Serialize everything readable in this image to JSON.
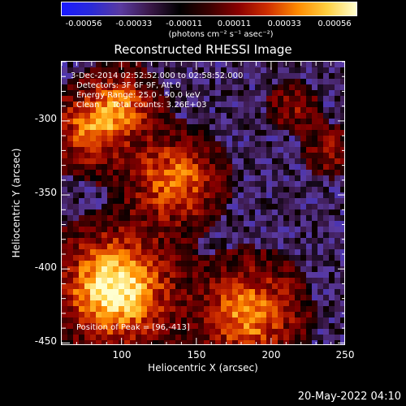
{
  "colorbar": {
    "ticks": [
      "-0.00056",
      "-0.00033",
      "-0.00011",
      "0.00011",
      "0.00033",
      "0.00056"
    ],
    "units": "(photons cm⁻² s⁻¹ asec⁻²)",
    "gradient": [
      "#1a1aff",
      "#2a2ad8",
      "#5a3aa0",
      "#3a1848",
      "#000000",
      "#3a0000",
      "#8a0000",
      "#d03000",
      "#ff8a00",
      "#ffd040",
      "#ffffd0"
    ]
  },
  "title": "Reconstructed RHESSI Image",
  "annotations": {
    "line1": "3-Dec-2014 02:52:52.000 to 02:58:52.000",
    "line2": "Detectors: 3F 6F 9F, Att 0",
    "line3": "Energy Range: 25.0 - 50.0 keV",
    "line4": "Clean     Total counts: 3.26E+03",
    "peak": "Position of Peak = [96,-413]"
  },
  "axes": {
    "xlabel": "Heliocentric X (arcsec)",
    "ylabel": "Heliocentric Y (arcsec)",
    "xlim": [
      60,
      250
    ],
    "ylim": [
      -452,
      -260
    ],
    "xticks": [
      "100",
      "150",
      "200",
      "250"
    ],
    "yticks": [
      "-300",
      "-350",
      "-400",
      "-450"
    ]
  },
  "chart_data": {
    "type": "heatmap",
    "title": "Reconstructed RHESSI Image",
    "xlabel": "Heliocentric X (arcsec)",
    "ylabel": "Heliocentric Y (arcsec)",
    "x_range": [
      60,
      250
    ],
    "y_range": [
      -452,
      -260
    ],
    "value_range": [
      -0.00056,
      0.00056
    ],
    "sources": [
      {
        "x": 96,
        "y": -413,
        "strength": 1.0,
        "spread": 22
      },
      {
        "x": 80,
        "y": -305,
        "strength": 0.55,
        "spread": 16
      },
      {
        "x": 100,
        "y": -290,
        "strength": 0.5,
        "spread": 14
      },
      {
        "x": 135,
        "y": -340,
        "strength": 0.6,
        "spread": 18
      },
      {
        "x": 185,
        "y": -430,
        "strength": 0.65,
        "spread": 20
      },
      {
        "x": 240,
        "y": -320,
        "strength": 0.3,
        "spread": 10
      },
      {
        "x": 215,
        "y": -290,
        "strength": 0.25,
        "spread": 10
      }
    ]
  },
  "footer": {
    "timestamp": "20-May-2022 04:10"
  }
}
